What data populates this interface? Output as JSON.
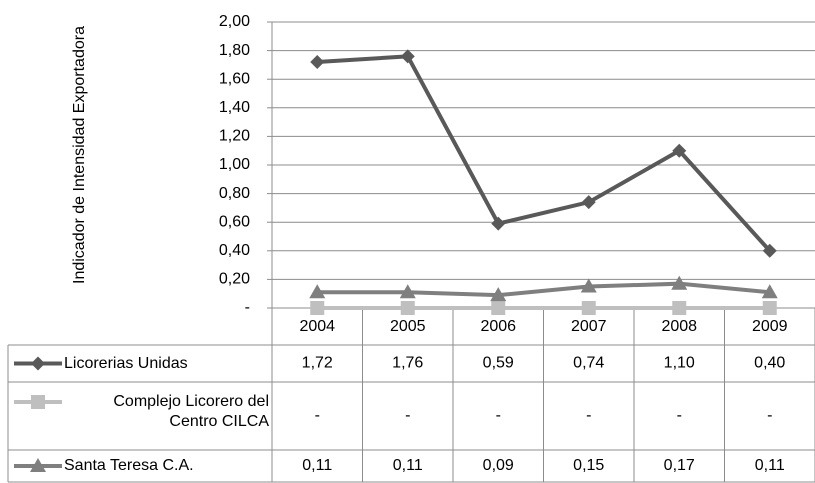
{
  "chart_data": {
    "type": "line",
    "ylabel": "Indicador de Intensidad Exportadora",
    "categories": [
      "2004",
      "2005",
      "2006",
      "2007",
      "2008",
      "2009"
    ],
    "series": [
      {
        "name": "Licorerias Unidas",
        "color": "#595959",
        "marker": "diamond",
        "values": [
          1.72,
          1.76,
          0.59,
          0.74,
          1.1,
          0.4
        ],
        "value_labels": [
          "1,72",
          "1,76",
          "0,59",
          "0,74",
          "1,10",
          "0,40"
        ]
      },
      {
        "name": "Complejo Licorero del Centro CILCA",
        "color": "#bfbfbf",
        "marker": "square",
        "values": [
          0,
          0,
          0,
          0,
          0,
          0
        ],
        "value_labels": [
          "-",
          "-",
          "-",
          "-",
          "-",
          "-"
        ]
      },
      {
        "name": "Santa Teresa C.A.",
        "color": "#7f7f7f",
        "marker": "triangle",
        "values": [
          0.11,
          0.11,
          0.09,
          0.15,
          0.17,
          0.11
        ],
        "value_labels": [
          "0,11",
          "0,11",
          "0,09",
          "0,15",
          "0,17",
          "0,11"
        ]
      }
    ],
    "ylim": [
      0,
      2
    ],
    "yticks": [
      {
        "value": 0,
        "label": "-"
      },
      {
        "value": 0.2,
        "label": "0,20"
      },
      {
        "value": 0.4,
        "label": "0,40"
      },
      {
        "value": 0.6,
        "label": "0,60"
      },
      {
        "value": 0.8,
        "label": "0,80"
      },
      {
        "value": 1.0,
        "label": "1,00"
      },
      {
        "value": 1.2,
        "label": "1,20"
      },
      {
        "value": 1.4,
        "label": "1,40"
      },
      {
        "value": 1.6,
        "label": "1,60"
      },
      {
        "value": 1.8,
        "label": "1,80"
      },
      {
        "value": 2.0,
        "label": "2,00"
      }
    ],
    "grid": true
  }
}
